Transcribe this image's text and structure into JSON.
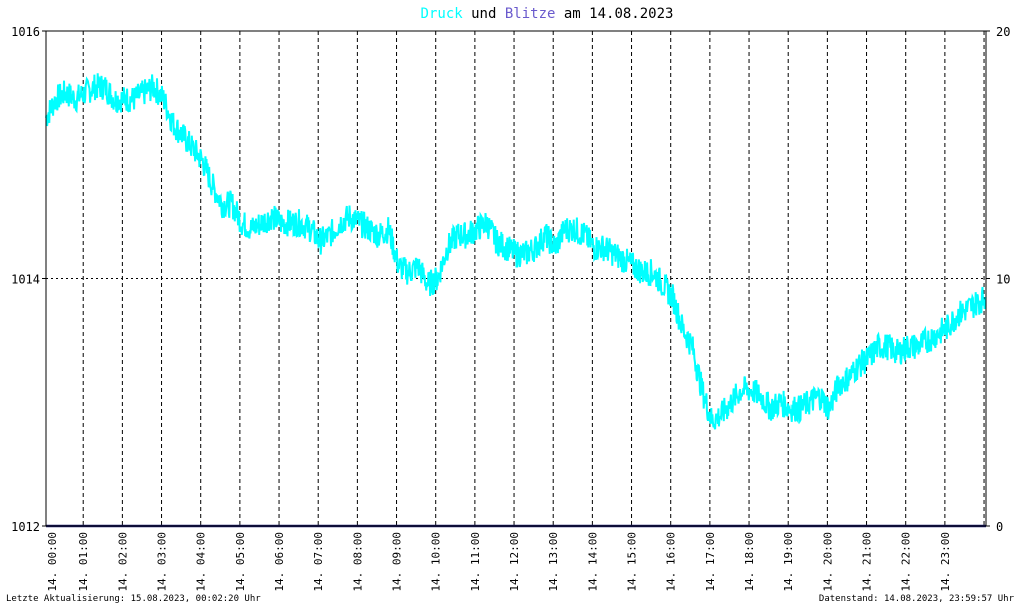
{
  "title": {
    "part1": "Druck",
    "part2": " und ",
    "part3": "Blitze",
    "part4": " am 14.08.2023"
  },
  "colors": {
    "pressure": "#00ffff",
    "lightning": "#6a5acd",
    "baseline": "#1a1a6e",
    "grid": "#000000",
    "background": "#ffffff"
  },
  "footer": {
    "left": "Letzte Aktualisierung: 15.08.2023, 00:02:20 Uhr",
    "right": "Datenstand: 14.08.2023, 23:59:57 Uhr"
  },
  "chart_data": {
    "type": "line",
    "x_tick_labels": [
      "14. 00:00",
      "14. 01:00",
      "14. 02:00",
      "14. 03:00",
      "14. 04:00",
      "14. 05:00",
      "14. 06:00",
      "14. 07:00",
      "14. 08:00",
      "14. 09:00",
      "14. 10:00",
      "14. 11:00",
      "14. 12:00",
      "14. 13:00",
      "14. 14:00",
      "14. 15:00",
      "14. 16:00",
      "14. 17:00",
      "14. 18:00",
      "14. 19:00",
      "14. 20:00",
      "14. 21:00",
      "14. 22:00",
      "14. 23:00"
    ],
    "xlim_hours": [
      0,
      24
    ],
    "y_left": {
      "ticks": [
        "1012",
        "1014",
        "1016"
      ],
      "lim": [
        1012,
        1016
      ]
    },
    "y_right": {
      "ticks": [
        "0",
        "10",
        "20"
      ],
      "lim": [
        0,
        20
      ]
    },
    "grid": true,
    "series": [
      {
        "name": "Druck",
        "axis": "left",
        "x_hours": [
          0,
          0.25,
          0.5,
          0.75,
          1.0,
          1.25,
          1.5,
          1.75,
          2.0,
          2.25,
          2.5,
          2.75,
          3.0,
          3.25,
          3.5,
          3.75,
          4.0,
          4.25,
          4.5,
          4.75,
          5.0,
          5.25,
          5.5,
          5.75,
          6.0,
          6.25,
          6.5,
          6.75,
          7.0,
          7.25,
          7.5,
          7.75,
          8.0,
          8.25,
          8.5,
          8.75,
          9.0,
          9.25,
          9.5,
          9.75,
          10.0,
          10.25,
          10.5,
          10.75,
          11.0,
          11.25,
          11.5,
          11.75,
          12.0,
          12.25,
          12.5,
          12.75,
          13.0,
          13.25,
          13.5,
          13.75,
          14.0,
          14.25,
          14.5,
          14.75,
          15.0,
          15.25,
          15.5,
          15.75,
          16.0,
          16.25,
          16.5,
          16.75,
          17.0,
          17.25,
          17.5,
          17.75,
          18.0,
          18.25,
          18.5,
          18.75,
          19.0,
          19.25,
          19.5,
          19.75,
          20.0,
          20.25,
          20.5,
          20.75,
          21.0,
          21.25,
          21.5,
          21.75,
          22.0,
          22.25,
          22.5,
          22.75,
          23.0,
          23.25,
          23.5,
          23.75,
          23.99
        ],
        "values": [
          1015.3,
          1015.45,
          1015.5,
          1015.45,
          1015.5,
          1015.55,
          1015.55,
          1015.45,
          1015.45,
          1015.45,
          1015.5,
          1015.55,
          1015.45,
          1015.25,
          1015.15,
          1015.05,
          1014.95,
          1014.75,
          1014.6,
          1014.6,
          1014.45,
          1014.4,
          1014.45,
          1014.5,
          1014.45,
          1014.45,
          1014.45,
          1014.4,
          1014.3,
          1014.35,
          1014.45,
          1014.5,
          1014.45,
          1014.4,
          1014.35,
          1014.4,
          1014.1,
          1014.05,
          1014.1,
          1013.95,
          1014.0,
          1014.25,
          1014.35,
          1014.35,
          1014.4,
          1014.45,
          1014.3,
          1014.25,
          1014.2,
          1014.2,
          1014.25,
          1014.35,
          1014.25,
          1014.4,
          1014.4,
          1014.35,
          1014.25,
          1014.25,
          1014.2,
          1014.15,
          1014.1,
          1014.05,
          1014.05,
          1013.95,
          1013.85,
          1013.6,
          1013.45,
          1013.1,
          1012.85,
          1012.9,
          1013.0,
          1013.1,
          1013.1,
          1013.05,
          1012.95,
          1013.0,
          1012.95,
          1012.95,
          1013.0,
          1013.05,
          1012.95,
          1013.15,
          1013.2,
          1013.3,
          1013.35,
          1013.45,
          1013.45,
          1013.4,
          1013.45,
          1013.45,
          1013.5,
          1013.55,
          1013.6,
          1013.7,
          1013.75,
          1013.8,
          1013.85
        ]
      },
      {
        "name": "Blitze",
        "axis": "right",
        "x_hours": [
          0,
          24
        ],
        "values": [
          0,
          0
        ]
      }
    ]
  }
}
